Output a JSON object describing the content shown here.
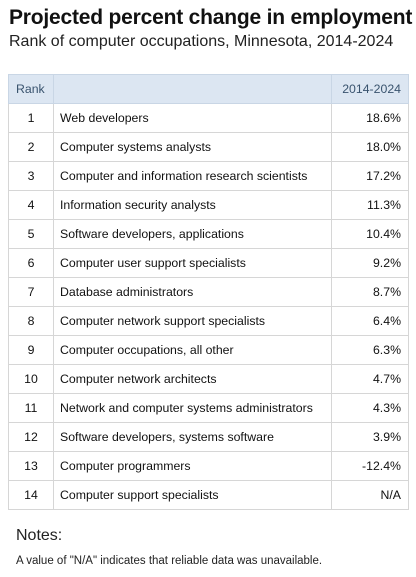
{
  "header": {
    "title": "Projected percent change in employment",
    "subtitle": "Rank of computer occupations, Minnesota, 2014-2024"
  },
  "table": {
    "columns": [
      "Rank",
      "",
      "2014-2024"
    ]
  },
  "chart_data": {
    "type": "table",
    "title": "Projected percent change in employment",
    "subtitle": "Rank of computer occupations, Minnesota, 2014-2024",
    "columns": [
      "Rank",
      "",
      "2014-2024"
    ],
    "rows": [
      {
        "rank": "1",
        "occupation": "Web developers",
        "value": "18.6%"
      },
      {
        "rank": "2",
        "occupation": "Computer systems analysts",
        "value": "18.0%"
      },
      {
        "rank": "3",
        "occupation": "Computer and information research scientists",
        "value": "17.2%"
      },
      {
        "rank": "4",
        "occupation": "Information security analysts",
        "value": "11.3%"
      },
      {
        "rank": "5",
        "occupation": "Software developers, applications",
        "value": "10.4%"
      },
      {
        "rank": "6",
        "occupation": "Computer user support specialists",
        "value": "9.2%"
      },
      {
        "rank": "7",
        "occupation": "Database administrators",
        "value": "8.7%"
      },
      {
        "rank": "8",
        "occupation": "Computer network support specialists",
        "value": "6.4%"
      },
      {
        "rank": "9",
        "occupation": "Computer occupations, all other",
        "value": "6.3%"
      },
      {
        "rank": "10",
        "occupation": "Computer network architects",
        "value": "4.7%"
      },
      {
        "rank": "11",
        "occupation": "Network and computer systems administrators",
        "value": "4.3%"
      },
      {
        "rank": "12",
        "occupation": "Software developers, systems software",
        "value": "3.9%"
      },
      {
        "rank": "13",
        "occupation": "Computer programmers",
        "value": "-12.4%"
      },
      {
        "rank": "14",
        "occupation": "Computer support specialists",
        "value": "N/A"
      }
    ]
  },
  "notes": {
    "title": "Notes:",
    "text": "A value of \"N/A\" indicates that reliable data was unavailable."
  }
}
